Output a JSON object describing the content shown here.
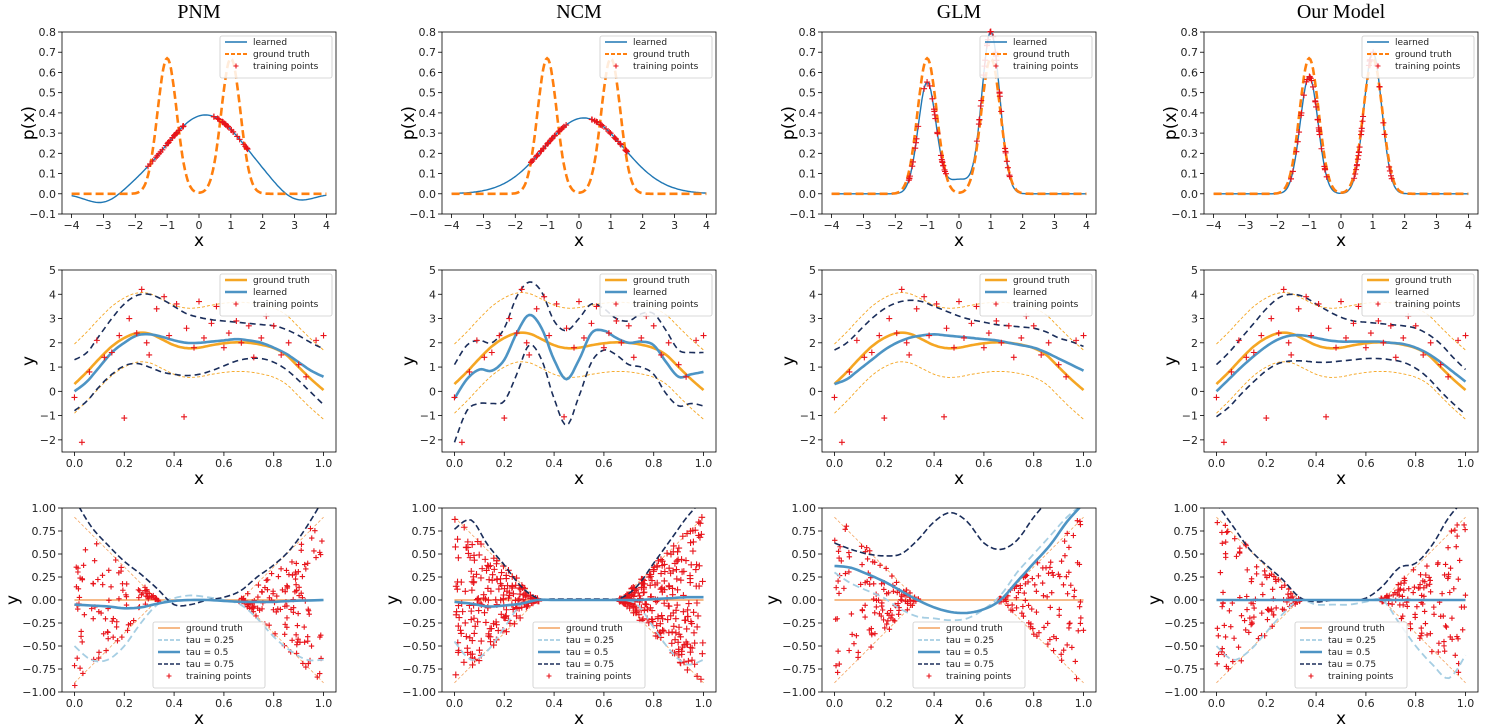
{
  "figure": {
    "column_titles": [
      "PNM",
      "NCM",
      "GLM",
      "Our Model"
    ],
    "colors": {
      "learned": "#1f77b4",
      "ground_truth_row1": "#ff7f0e",
      "ground_truth_orange": "#f5a623",
      "blue_thick": "#4d94c4",
      "tau_0_25": "#a6cee3",
      "tau_0_75": "#1a2d5a",
      "ground_truth_row3": "#f4a460",
      "points": "#e8141b"
    }
  },
  "chart_data": [
    {
      "id": "row1",
      "type": "line",
      "xlabel": "x",
      "ylabel": "p(x)",
      "xlim": [
        -4.3,
        4.3
      ],
      "ylim": [
        -0.1,
        0.8
      ],
      "xticks": [
        -4,
        -3,
        -2,
        -1,
        0,
        1,
        2,
        3,
        4
      ],
      "xticklabels": [
        "−4",
        "−3",
        "−2",
        "−1",
        "0",
        "1",
        "2",
        "3",
        "4"
      ],
      "yticks": [
        -0.1,
        0.0,
        0.1,
        0.2,
        0.3,
        0.4,
        0.5,
        0.6,
        0.7,
        0.8
      ],
      "yticklabels": [
        "−0.1",
        "0.0",
        "0.1",
        "0.2",
        "0.3",
        "0.4",
        "0.5",
        "0.6",
        "0.7",
        "0.8"
      ],
      "legend": {
        "location": "top-right",
        "entries": [
          "learned",
          "ground truth",
          "training points"
        ]
      },
      "ground_truth": {
        "name": "ground truth",
        "type": "two-peak mixture",
        "peaks": [
          -1,
          1
        ],
        "peak_height": 0.67,
        "sigma": 0.3
      },
      "panels": [
        {
          "model": "PNM",
          "learned": {
            "type": "bump",
            "center": 0.2,
            "height": 0.39,
            "min": -0.035,
            "min_at": [
              -3,
              3
            ]
          },
          "training_points": {
            "x_ranges": [
              [
                -1.6,
                -0.4
              ],
              [
                0.4,
                1.6
              ]
            ],
            "lie_on": "learned"
          }
        },
        {
          "model": "NCM",
          "learned": {
            "type": "bump",
            "center": 0.15,
            "height": 0.375
          },
          "training_points": {
            "x_ranges": [
              [
                -1.6,
                -0.4
              ],
              [
                0.4,
                1.6
              ]
            ],
            "lie_on": "learned"
          }
        },
        {
          "model": "GLM",
          "learned": {
            "type": "two-peak",
            "peak_heights": [
              0.55,
              0.8
            ],
            "center_value": 0.07
          },
          "training_points": {
            "x_ranges": [
              [
                -1.6,
                -0.4
              ],
              [
                0.4,
                1.6
              ]
            ],
            "lie_on": "learned"
          }
        },
        {
          "model": "Our Model",
          "learned": {
            "type": "two-peak",
            "peak_heights": [
              0.58,
              0.7
            ]
          },
          "training_points": {
            "x_ranges": [
              [
                -1.6,
                -0.4
              ],
              [
                0.4,
                1.6
              ]
            ],
            "lie_on": "learned"
          }
        }
      ]
    },
    {
      "id": "row2",
      "type": "line",
      "xlabel": "x",
      "ylabel": "y",
      "xlim": [
        -0.05,
        1.05
      ],
      "ylim": [
        -2.5,
        5
      ],
      "xticks": [
        0.0,
        0.2,
        0.4,
        0.6,
        0.8,
        1.0
      ],
      "xticklabels": [
        "0.0",
        "0.2",
        "0.4",
        "0.6",
        "0.8",
        "1.0"
      ],
      "yticks": [
        -2,
        -1,
        0,
        1,
        2,
        3,
        4,
        5
      ],
      "yticklabels": [
        "−2",
        "−1",
        "0",
        "1",
        "2",
        "3",
        "4",
        "5"
      ],
      "legend": {
        "location": "top-right",
        "entries": [
          "ground truth",
          "learned",
          "training points"
        ]
      },
      "ground_truth": {
        "x": [
          0,
          0.05,
          0.1,
          0.15,
          0.2,
          0.25,
          0.3,
          0.35,
          0.4,
          0.45,
          0.5,
          0.55,
          0.6,
          0.65,
          0.7,
          0.75,
          0.8,
          0.85,
          0.9,
          0.95,
          1.0
        ],
        "y": [
          0.3,
          0.8,
          1.35,
          1.85,
          2.2,
          2.4,
          2.38,
          2.15,
          1.9,
          1.78,
          1.8,
          1.9,
          1.98,
          2.02,
          2.0,
          1.92,
          1.78,
          1.5,
          1.0,
          0.5,
          0.05
        ],
        "band": 1.0
      },
      "training_points": {
        "x": [
          0.0,
          0.03,
          0.06,
          0.09,
          0.12,
          0.15,
          0.18,
          0.2,
          0.22,
          0.25,
          0.27,
          0.29,
          0.3,
          0.33,
          0.36,
          0.38,
          0.41,
          0.44,
          0.45,
          0.48,
          0.5,
          0.52,
          0.55,
          0.57,
          0.6,
          0.62,
          0.65,
          0.67,
          0.7,
          0.72,
          0.75,
          0.77,
          0.8,
          0.83,
          0.86,
          0.9,
          0.93,
          0.97,
          1.0
        ],
        "y": [
          -0.25,
          -2.1,
          0.8,
          2.1,
          1.4,
          1.6,
          2.3,
          -1.1,
          3.0,
          2.4,
          4.2,
          2.0,
          1.5,
          3.4,
          3.9,
          2.3,
          3.6,
          -1.05,
          2.6,
          1.8,
          3.7,
          2.2,
          2.8,
          3.5,
          1.8,
          2.4,
          2.9,
          2.0,
          2.7,
          1.4,
          2.2,
          3.1,
          2.7,
          1.5,
          2.0,
          1.1,
          0.6,
          2.1,
          2.3
        ]
      },
      "panels": [
        {
          "model": "PNM",
          "learned": {
            "x": [
              0,
              0.05,
              0.1,
              0.15,
              0.2,
              0.25,
              0.3,
              0.35,
              0.4,
              0.45,
              0.5,
              0.55,
              0.6,
              0.65,
              0.7,
              0.75,
              0.8,
              0.85,
              0.9,
              0.95,
              1.0
            ],
            "y": [
              0.0,
              0.4,
              1.0,
              1.6,
              2.0,
              2.3,
              2.35,
              2.25,
              2.1,
              2.0,
              2.0,
              2.05,
              2.1,
              2.15,
              2.1,
              2.0,
              1.8,
              1.55,
              1.2,
              0.85,
              0.6
            ]
          },
          "upper": [
            1.3,
            1.6,
            2.3,
            3.0,
            3.6,
            3.95,
            4.0,
            3.8,
            3.5,
            3.2,
            3.05,
            2.95,
            2.9,
            2.85,
            2.8,
            2.75,
            2.7,
            2.55,
            2.3,
            2.0,
            1.75
          ],
          "lower": [
            -0.8,
            -0.4,
            0.2,
            0.7,
            1.05,
            1.15,
            1.0,
            0.8,
            0.7,
            0.65,
            0.7,
            0.85,
            1.05,
            1.25,
            1.35,
            1.35,
            1.2,
            0.9,
            0.45,
            -0.05,
            -0.55
          ]
        },
        {
          "model": "NCM",
          "learned": {
            "x": [
              0,
              0.05,
              0.1,
              0.15,
              0.2,
              0.25,
              0.3,
              0.35,
              0.4,
              0.45,
              0.5,
              0.55,
              0.6,
              0.65,
              0.7,
              0.75,
              0.8,
              0.85,
              0.9,
              0.95,
              1.0
            ],
            "y": [
              -0.3,
              0.5,
              0.9,
              0.85,
              1.3,
              2.4,
              3.15,
              2.6,
              1.3,
              0.5,
              1.3,
              2.4,
              2.5,
              2.2,
              2.0,
              2.05,
              1.9,
              1.2,
              0.6,
              0.7,
              0.8
            ]
          },
          "upper": [
            1.1,
            1.9,
            2.1,
            2.0,
            2.6,
            3.9,
            4.5,
            4.1,
            2.9,
            2.5,
            3.0,
            3.6,
            3.4,
            3.0,
            2.9,
            3.2,
            3.2,
            2.5,
            1.7,
            1.6,
            1.6
          ],
          "lower": [
            -2.1,
            -0.8,
            -0.5,
            -0.5,
            -0.4,
            0.7,
            1.9,
            1.3,
            -0.3,
            -1.4,
            -0.2,
            1.2,
            1.7,
            1.5,
            1.1,
            1.0,
            0.7,
            -0.1,
            -0.6,
            -0.5,
            -0.6
          ]
        },
        {
          "model": "GLM",
          "learned": {
            "x": [
              0,
              0.05,
              0.1,
              0.15,
              0.2,
              0.25,
              0.3,
              0.35,
              0.4,
              0.45,
              0.5,
              0.55,
              0.6,
              0.65,
              0.7,
              0.75,
              0.8,
              0.85,
              0.9,
              0.95,
              1.0
            ],
            "y": [
              0.3,
              0.5,
              0.9,
              1.3,
              1.7,
              2.0,
              2.2,
              2.3,
              2.35,
              2.3,
              2.25,
              2.2,
              2.15,
              2.1,
              2.0,
              1.9,
              1.8,
              1.6,
              1.35,
              1.1,
              0.85
            ]
          },
          "upper": [
            1.7,
            2.0,
            2.5,
            3.0,
            3.4,
            3.65,
            3.75,
            3.7,
            3.5,
            3.3,
            3.1,
            2.95,
            2.85,
            2.75,
            2.7,
            2.65,
            2.6,
            2.45,
            2.2,
            2.05,
            1.85
          ]
        },
        {
          "model": "Our Model",
          "learned": {
            "x": [
              0,
              0.05,
              0.1,
              0.15,
              0.2,
              0.25,
              0.3,
              0.35,
              0.4,
              0.45,
              0.5,
              0.55,
              0.6,
              0.65,
              0.7,
              0.75,
              0.8,
              0.85,
              0.9,
              0.95,
              1.0
            ],
            "y": [
              0.0,
              0.5,
              1.0,
              1.45,
              1.85,
              2.15,
              2.3,
              2.3,
              2.2,
              2.1,
              2.05,
              2.05,
              2.05,
              2.05,
              2.0,
              1.95,
              1.8,
              1.55,
              1.2,
              0.8,
              0.4
            ]
          },
          "upper": [
            1.1,
            1.6,
            2.2,
            2.8,
            3.4,
            3.85,
            4.0,
            3.9,
            3.6,
            3.3,
            3.05,
            2.9,
            2.85,
            2.8,
            2.75,
            2.7,
            2.6,
            2.35,
            1.95,
            1.4,
            0.9
          ],
          "lower": [
            -1.05,
            -0.65,
            -0.1,
            0.4,
            0.85,
            1.15,
            1.25,
            1.25,
            1.2,
            1.2,
            1.25,
            1.3,
            1.35,
            1.35,
            1.3,
            1.2,
            0.95,
            0.55,
            0.0,
            -0.5,
            -0.95
          ]
        }
      ]
    },
    {
      "id": "row3",
      "type": "line",
      "xlabel": "x",
      "ylabel": "y",
      "xlim": [
        -0.05,
        1.05
      ],
      "ylim": [
        -1.0,
        1.0
      ],
      "xticks": [
        0.0,
        0.2,
        0.4,
        0.6,
        0.8,
        1.0
      ],
      "xticklabels": [
        "0.0",
        "0.2",
        "0.4",
        "0.6",
        "0.8",
        "1.0"
      ],
      "yticks": [
        -1.0,
        -0.75,
        -0.5,
        -0.25,
        0.0,
        0.25,
        0.5,
        0.75,
        1.0
      ],
      "yticklabels": [
        "−1.00",
        "−0.75",
        "−0.50",
        "−0.25",
        "0.00",
        "0.25",
        "0.50",
        "0.75",
        "1.00"
      ],
      "legend": {
        "location": "bottom-center",
        "entries": [
          "ground truth",
          "tau = 0.25",
          "tau = 0.5",
          "tau = 0.75",
          "training points"
        ]
      },
      "ground_truth": {
        "description": "y = 0 on [1/3, 2/3]; spread ±(1/3 − x)·k on the left and ±(x − 2/3)·k on the right",
        "spread_at_edges": 0.9
      },
      "panels": [
        {
          "model": "PNM",
          "tau_0_25": [
            -0.5,
            -0.65,
            -0.65,
            -0.5,
            -0.25,
            -0.05,
            0.02,
            0.05,
            0.03,
            0.0,
            -0.05,
            -0.2,
            -0.4,
            -0.55,
            -0.65,
            -0.65
          ],
          "tau_0_5": [
            -0.05,
            -0.06,
            -0.07,
            -0.09,
            -0.08,
            -0.04,
            -0.01,
            0.0,
            0.0,
            -0.01,
            -0.02,
            -0.02,
            -0.02,
            -0.01,
            -0.005,
            0.0
          ],
          "tau_0_75": [
            1.1,
            0.8,
            0.6,
            0.42,
            0.28,
            0.12,
            -0.05,
            -0.05,
            0.0,
            0.03,
            0.1,
            0.25,
            0.38,
            0.55,
            0.8,
            1.1
          ],
          "point_count": 230
        },
        {
          "model": "NCM",
          "tau_0_25": [
            -0.45,
            -0.65,
            -0.55,
            -0.3,
            -0.05,
            0.0,
            0.0,
            0.0,
            0.0,
            0.0,
            0.0,
            -0.05,
            -0.3,
            -0.55,
            -0.7,
            -0.65
          ],
          "tau_0_5": [
            -0.02,
            -0.04,
            -0.07,
            -0.06,
            -0.04,
            0.0,
            0.0,
            0.0,
            0.0,
            0.0,
            0.0,
            0.0,
            0.01,
            0.02,
            0.03,
            0.03
          ],
          "tau_0_75": [
            0.77,
            0.87,
            0.6,
            0.38,
            0.15,
            0.02,
            0.01,
            0.01,
            0.01,
            0.01,
            0.02,
            0.15,
            0.4,
            0.65,
            0.9,
            1.1
          ],
          "point_count": 450
        },
        {
          "model": "GLM",
          "tau_0_25": [
            0.3,
            0.18,
            0.1,
            0.02,
            -0.1,
            -0.18,
            -0.2,
            -0.22,
            -0.2,
            -0.1,
            0.05,
            0.3,
            0.5,
            0.7,
            0.9,
            1.05
          ],
          "tau_0_5": [
            0.37,
            0.35,
            0.28,
            0.2,
            0.1,
            0.0,
            -0.08,
            -0.13,
            -0.14,
            -0.1,
            0.0,
            0.2,
            0.4,
            0.6,
            0.85,
            1.05
          ],
          "tau_0_75": [
            0.62,
            0.55,
            0.5,
            0.48,
            0.5,
            0.65,
            0.85,
            0.95,
            0.85,
            0.62,
            0.55,
            0.65,
            0.9,
            1.1,
            1.2,
            1.3
          ],
          "point_count": 230
        },
        {
          "model": "Our Model",
          "tau_0_25": [
            -0.5,
            -0.65,
            -0.55,
            -0.35,
            -0.15,
            0.0,
            -0.05,
            -0.05,
            -0.05,
            -0.02,
            0.0,
            -0.25,
            -0.5,
            -0.7,
            -0.85,
            -0.6
          ],
          "tau_0_5": [
            0.0,
            0.0,
            0.0,
            0.0,
            0.0,
            0.0,
            0.0,
            0.0,
            0.0,
            0.0,
            0.0,
            0.0,
            0.0,
            0.0,
            0.0,
            0.0
          ],
          "tau_0_75": [
            1.05,
            0.8,
            0.55,
            0.38,
            0.22,
            0.03,
            -0.02,
            0.0,
            0.0,
            0.02,
            0.15,
            0.35,
            0.4,
            0.6,
            0.9,
            1.1
          ],
          "point_count": 230
        }
      ]
    }
  ]
}
